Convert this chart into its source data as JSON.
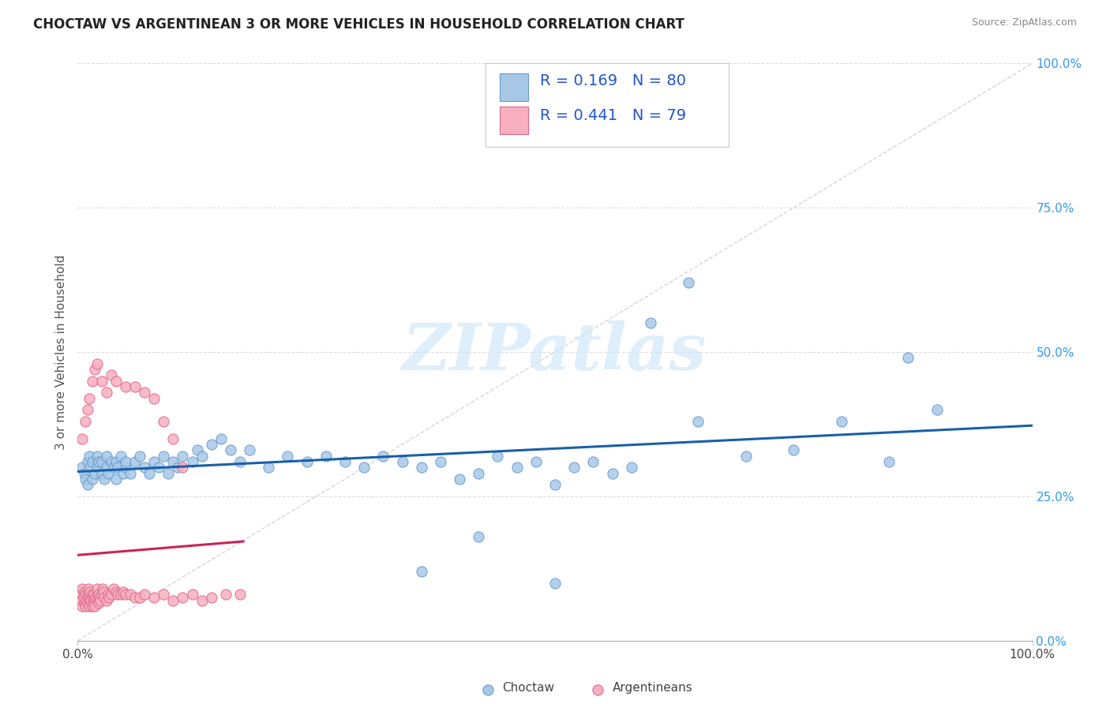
{
  "title": "CHOCTAW VS ARGENTINEAN 3 OR MORE VEHICLES IN HOUSEHOLD CORRELATION CHART",
  "source": "Source: ZipAtlas.com",
  "ylabel": "3 or more Vehicles in Household",
  "xlim": [
    0,
    1
  ],
  "ylim": [
    0,
    1
  ],
  "xtick_positions": [
    0.0,
    1.0
  ],
  "xtick_labels": [
    "0.0%",
    "100.0%"
  ],
  "ytick_positions": [
    0.0,
    0.25,
    0.5,
    0.75,
    1.0
  ],
  "ytick_labels_right": [
    "0.0%",
    "25.0%",
    "50.0%",
    "75.0%",
    "100.0%"
  ],
  "choctaw_color": "#a8c8e8",
  "choctaw_edge_color": "#6699cc",
  "argentinean_color": "#f8b0c0",
  "argentinean_edge_color": "#dd6688",
  "choctaw_line_color": "#1a5fa8",
  "argentinean_line_color": "#cc2255",
  "diagonal_color": "#cccccc",
  "grid_color": "#dddddd",
  "legend_R1": "0.169",
  "legend_N1": "80",
  "legend_R2": "0.441",
  "legend_N2": "79",
  "watermark_text": "ZIPatlas",
  "watermark_color": "#d0e8f8",
  "choctaw_scatter_x": [
    0.005,
    0.007,
    0.008,
    0.01,
    0.01,
    0.012,
    0.013,
    0.015,
    0.015,
    0.018,
    0.02,
    0.02,
    0.022,
    0.025,
    0.025,
    0.028,
    0.03,
    0.03,
    0.032,
    0.035,
    0.038,
    0.04,
    0.04,
    0.042,
    0.045,
    0.048,
    0.05,
    0.05,
    0.055,
    0.06,
    0.065,
    0.07,
    0.075,
    0.08,
    0.085,
    0.09,
    0.095,
    0.1,
    0.105,
    0.11,
    0.12,
    0.125,
    0.13,
    0.14,
    0.15,
    0.16,
    0.17,
    0.18,
    0.2,
    0.22,
    0.24,
    0.26,
    0.28,
    0.3,
    0.32,
    0.34,
    0.36,
    0.38,
    0.4,
    0.42,
    0.44,
    0.46,
    0.48,
    0.5,
    0.52,
    0.54,
    0.56,
    0.58,
    0.6,
    0.65,
    0.7,
    0.75,
    0.8,
    0.85,
    0.87,
    0.9,
    0.42,
    0.36,
    0.5,
    0.64
  ],
  "choctaw_scatter_y": [
    0.3,
    0.29,
    0.28,
    0.31,
    0.27,
    0.32,
    0.3,
    0.28,
    0.31,
    0.29,
    0.3,
    0.32,
    0.31,
    0.29,
    0.31,
    0.28,
    0.3,
    0.32,
    0.29,
    0.31,
    0.3,
    0.28,
    0.31,
    0.3,
    0.32,
    0.29,
    0.3,
    0.31,
    0.29,
    0.31,
    0.32,
    0.3,
    0.29,
    0.31,
    0.3,
    0.32,
    0.29,
    0.31,
    0.3,
    0.32,
    0.31,
    0.33,
    0.32,
    0.34,
    0.35,
    0.33,
    0.31,
    0.33,
    0.3,
    0.32,
    0.31,
    0.32,
    0.31,
    0.3,
    0.32,
    0.31,
    0.3,
    0.31,
    0.28,
    0.29,
    0.32,
    0.3,
    0.31,
    0.27,
    0.3,
    0.31,
    0.29,
    0.3,
    0.55,
    0.38,
    0.32,
    0.33,
    0.38,
    0.31,
    0.49,
    0.4,
    0.18,
    0.12,
    0.1,
    0.62
  ],
  "argentinean_scatter_x": [
    0.003,
    0.004,
    0.005,
    0.005,
    0.006,
    0.007,
    0.007,
    0.008,
    0.008,
    0.009,
    0.01,
    0.01,
    0.011,
    0.011,
    0.012,
    0.012,
    0.013,
    0.013,
    0.014,
    0.015,
    0.015,
    0.016,
    0.016,
    0.017,
    0.018,
    0.018,
    0.019,
    0.02,
    0.02,
    0.021,
    0.022,
    0.022,
    0.023,
    0.024,
    0.025,
    0.026,
    0.027,
    0.028,
    0.03,
    0.032,
    0.033,
    0.035,
    0.038,
    0.04,
    0.042,
    0.045,
    0.048,
    0.05,
    0.055,
    0.06,
    0.065,
    0.07,
    0.08,
    0.09,
    0.1,
    0.11,
    0.12,
    0.13,
    0.14,
    0.155,
    0.17,
    0.005,
    0.008,
    0.01,
    0.012,
    0.015,
    0.018,
    0.02,
    0.025,
    0.03,
    0.035,
    0.04,
    0.05,
    0.06,
    0.07,
    0.08,
    0.09,
    0.1,
    0.11
  ],
  "argentinean_scatter_y": [
    0.08,
    0.07,
    0.06,
    0.09,
    0.075,
    0.065,
    0.085,
    0.06,
    0.08,
    0.07,
    0.065,
    0.08,
    0.075,
    0.09,
    0.07,
    0.06,
    0.075,
    0.085,
    0.07,
    0.06,
    0.08,
    0.065,
    0.075,
    0.08,
    0.07,
    0.06,
    0.075,
    0.08,
    0.09,
    0.07,
    0.065,
    0.08,
    0.075,
    0.07,
    0.08,
    0.09,
    0.085,
    0.075,
    0.07,
    0.08,
    0.075,
    0.08,
    0.09,
    0.085,
    0.08,
    0.08,
    0.085,
    0.08,
    0.08,
    0.075,
    0.075,
    0.08,
    0.075,
    0.08,
    0.07,
    0.075,
    0.08,
    0.07,
    0.075,
    0.08,
    0.08,
    0.35,
    0.38,
    0.4,
    0.42,
    0.45,
    0.47,
    0.48,
    0.45,
    0.43,
    0.46,
    0.45,
    0.44,
    0.44,
    0.43,
    0.42,
    0.38,
    0.35,
    0.3
  ]
}
